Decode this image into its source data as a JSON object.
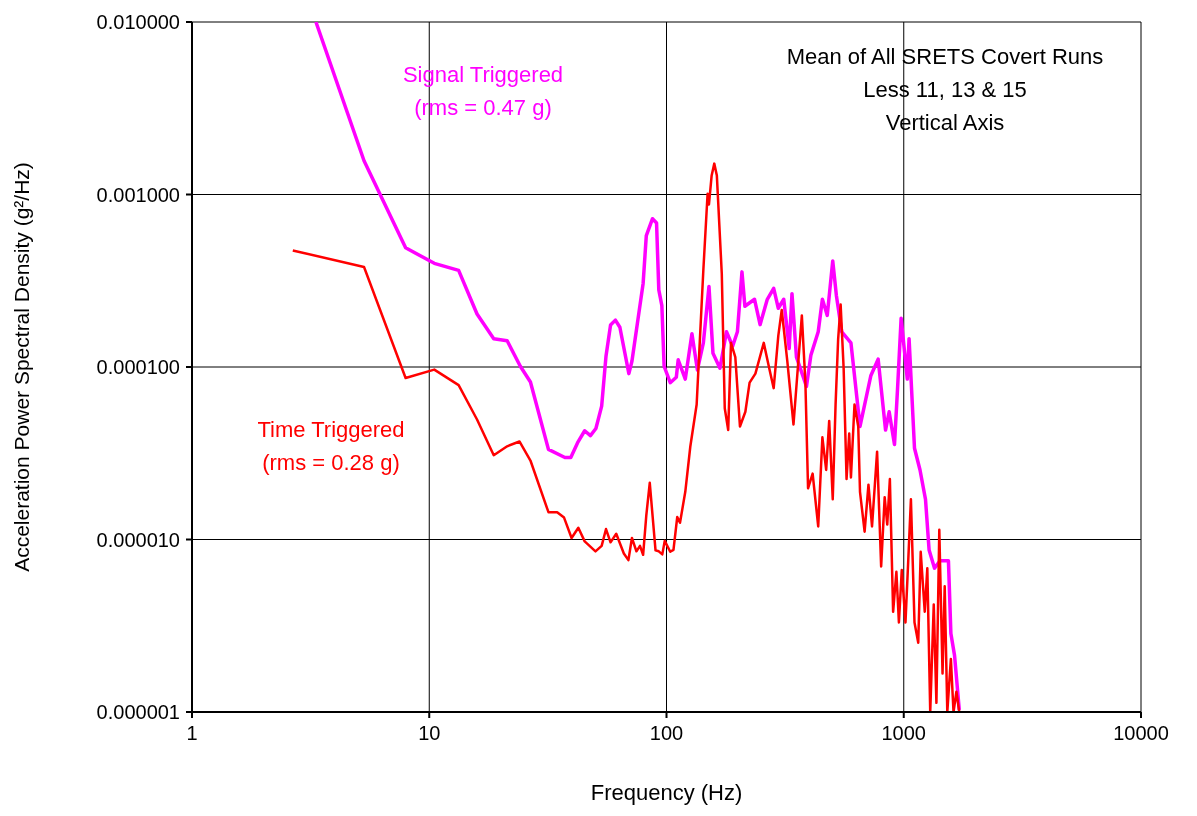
{
  "chart_data": {
    "type": "line",
    "title": "Mean of All SRETS Covert Runs\nLess 11, 13 & 15\nVertical Axis",
    "xlabel": "Frequency (Hz)",
    "ylabel": "Acceleration Power Spectral Density (g²/Hz)",
    "log": "xy",
    "grid": true,
    "marker": "none",
    "line_style": "solid",
    "xlim": [
      1,
      10000
    ],
    "xticks": [
      1,
      10,
      100,
      1000,
      10000
    ],
    "ylim": [
      1e-06,
      0.01
    ],
    "yticks": [
      {
        "value": 1e-06,
        "label": "0.000001"
      },
      {
        "value": 1e-05,
        "label": "0.000010"
      },
      {
        "value": 0.0001,
        "label": "0.000100"
      },
      {
        "value": 0.001,
        "label": "0.001000"
      },
      {
        "value": 0.01,
        "label": "0.010000"
      }
    ],
    "series": [
      {
        "name": "Signal Triggered\n(rms = 0.47 g)",
        "color": "#ff00ff",
        "x": [
          3.33,
          5.31,
          7.95,
          10.5,
          13.3,
          15.9,
          18.7,
          21.3,
          24.2,
          26.7,
          31.8,
          37.3,
          39.5,
          42.2,
          45.2,
          47.8,
          50.4,
          53.3,
          55.6,
          58.1,
          60.9,
          63.6,
          69.4,
          71.5,
          79.7,
          82.2,
          87.3,
          90.8,
          92.8,
          95.6,
          97.7,
          103.7,
          110,
          112,
          120,
          128,
          135,
          143,
          151,
          157,
          168,
          179,
          190,
          199,
          208,
          214,
          235,
          248,
          266,
          283,
          296,
          312,
          329,
          338,
          353,
          389,
          406,
          436,
          454,
          476,
          502,
          520,
          548,
          599,
          654,
          727,
          780,
          838,
          868,
          914,
          941,
          975,
          1035,
          1053,
          1110,
          1171,
          1235,
          1279,
          1348,
          1422,
          1543,
          1580,
          1637,
          1714
        ],
        "values": [
          0.01,
          0.00157,
          0.000491,
          0.000399,
          0.000363,
          0.000203,
          0.000146,
          0.000142,
          0.000101,
          8.18e-05,
          3.33e-05,
          2.99e-05,
          2.99e-05,
          3.64e-05,
          4.27e-05,
          4e-05,
          4.4e-05,
          5.93e-05,
          0.000116,
          0.000175,
          0.000187,
          0.00017,
          9.15e-05,
          0.000108,
          0.000305,
          0.000578,
          0.000724,
          0.000683,
          0.00028,
          0.000227,
          0.000101,
          8.11e-05,
          8.72e-05,
          0.00011,
          8.51e-05,
          0.000156,
          9.61e-05,
          0.000138,
          0.000293,
          0.00012,
          9.84e-05,
          0.00016,
          0.000132,
          0.00016,
          0.000356,
          0.000225,
          0.000247,
          0.000176,
          0.000247,
          0.000286,
          0.000219,
          0.000247,
          0.000128,
          0.000266,
          0.000114,
          7.72e-05,
          0.000117,
          0.00016,
          0.000247,
          0.000199,
          0.000412,
          0.00026,
          0.00016,
          0.000138,
          4.52e-05,
          8.93e-05,
          0.000111,
          4.31e-05,
          5.5e-05,
          3.55e-05,
          7.36e-05,
          0.000192,
          8.51e-05,
          0.000146,
          3.38e-05,
          2.53e-05,
          1.71e-05,
          8.69e-06,
          6.82e-06,
          7.52e-06,
          7.52e-06,
          2.85e-06,
          2.13e-06,
          1.03e-06
        ]
      },
      {
        "name": "Time Triggered\n(rms = 0.28 g)",
        "color": "#ff0000",
        "x": [
          2.66,
          5.31,
          7.95,
          10.5,
          13.3,
          15.9,
          18.7,
          21.3,
          24,
          26.7,
          31.8,
          34.6,
          37,
          39.8,
          42.5,
          45.2,
          50.2,
          53.3,
          55.6,
          58.1,
          61.4,
          66.1,
          69.1,
          71.5,
          74.7,
          77.3,
          79.7,
          82.2,
          85,
          89.9,
          92.8,
          96,
          98.3,
          103.7,
          107,
          111,
          114,
          120,
          126,
          134,
          143,
          149,
          151,
          155,
          159,
          163,
          171,
          176,
          182,
          187,
          195,
          204,
          215,
          224,
          237,
          257,
          271,
          283,
          296,
          306,
          323,
          343,
          372,
          385,
          395,
          413,
          436,
          454,
          471,
          485,
          502,
          516,
          529,
          542,
          558,
          574,
          589,
          599,
          620,
          643,
          654,
          684,
          710,
          735,
          772,
          803,
          831,
          852,
          874,
          902,
          931,
          954,
          981,
          1017,
          1046,
          1072,
          1110,
          1151,
          1179,
          1226,
          1257,
          1293,
          1338,
          1373,
          1412,
          1457,
          1488,
          1526,
          1580,
          1621,
          1667,
          1714
        ],
        "values": [
          0.000474,
          0.00038,
          8.64e-05,
          9.66e-05,
          7.85e-05,
          4.96e-05,
          3.08e-05,
          3.47e-05,
          3.7e-05,
          2.87e-05,
          1.44e-05,
          1.44e-05,
          1.34e-05,
          1.02e-05,
          1.17e-05,
          9.75e-06,
          8.54e-06,
          9.18e-06,
          1.15e-05,
          9.63e-06,
          1.08e-05,
          8.3e-06,
          7.59e-06,
          1.02e-05,
          8.54e-06,
          9.18e-06,
          8.15e-06,
          1.38e-05,
          2.13e-05,
          8.65e-06,
          8.54e-06,
          8.2e-06,
          9.82e-06,
          8.49e-06,
          8.7e-06,
          1.35e-05,
          1.25e-05,
          1.89e-05,
          3.46e-05,
          6.06e-05,
          0.000365,
          0.00101,
          0.000875,
          0.00129,
          0.00151,
          0.00129,
          0.000348,
          5.77e-05,
          4.31e-05,
          0.000138,
          0.000114,
          4.52e-05,
          5.5e-05,
          8.11e-05,
          9.15e-05,
          0.000138,
          9.84e-05,
          7.54e-05,
          0.000152,
          0.000214,
          0.000108,
          4.64e-05,
          0.000199,
          8.11e-05,
          1.98e-05,
          2.41e-05,
          1.19e-05,
          3.91e-05,
          2.53e-05,
          4.87e-05,
          1.71e-05,
          6.06e-05,
          0.000145,
          0.00023,
          9.84e-05,
          2.24e-05,
          4.11e-05,
          2.29e-05,
          6.06e-05,
          4.52e-05,
          1.89e-05,
          1.11e-05,
          2.08e-05,
          1.19e-05,
          3.23e-05,
          6.98e-06,
          1.76e-05,
          1.22e-05,
          2.24e-05,
          3.81e-06,
          6.5e-06,
          3.3e-06,
          6.66e-06,
          3.3e-06,
          7.88e-06,
          1.71e-05,
          3.3e-06,
          2.52e-06,
          8.49e-06,
          3.81e-06,
          6.82e-06,
          1e-06,
          4.2e-06,
          1.13e-06,
          1.14e-05,
          1.67e-06,
          5.35e-06,
          1e-06,
          2.03e-06,
          1e-06,
          1.31e-06,
          1e-06
        ]
      }
    ]
  }
}
